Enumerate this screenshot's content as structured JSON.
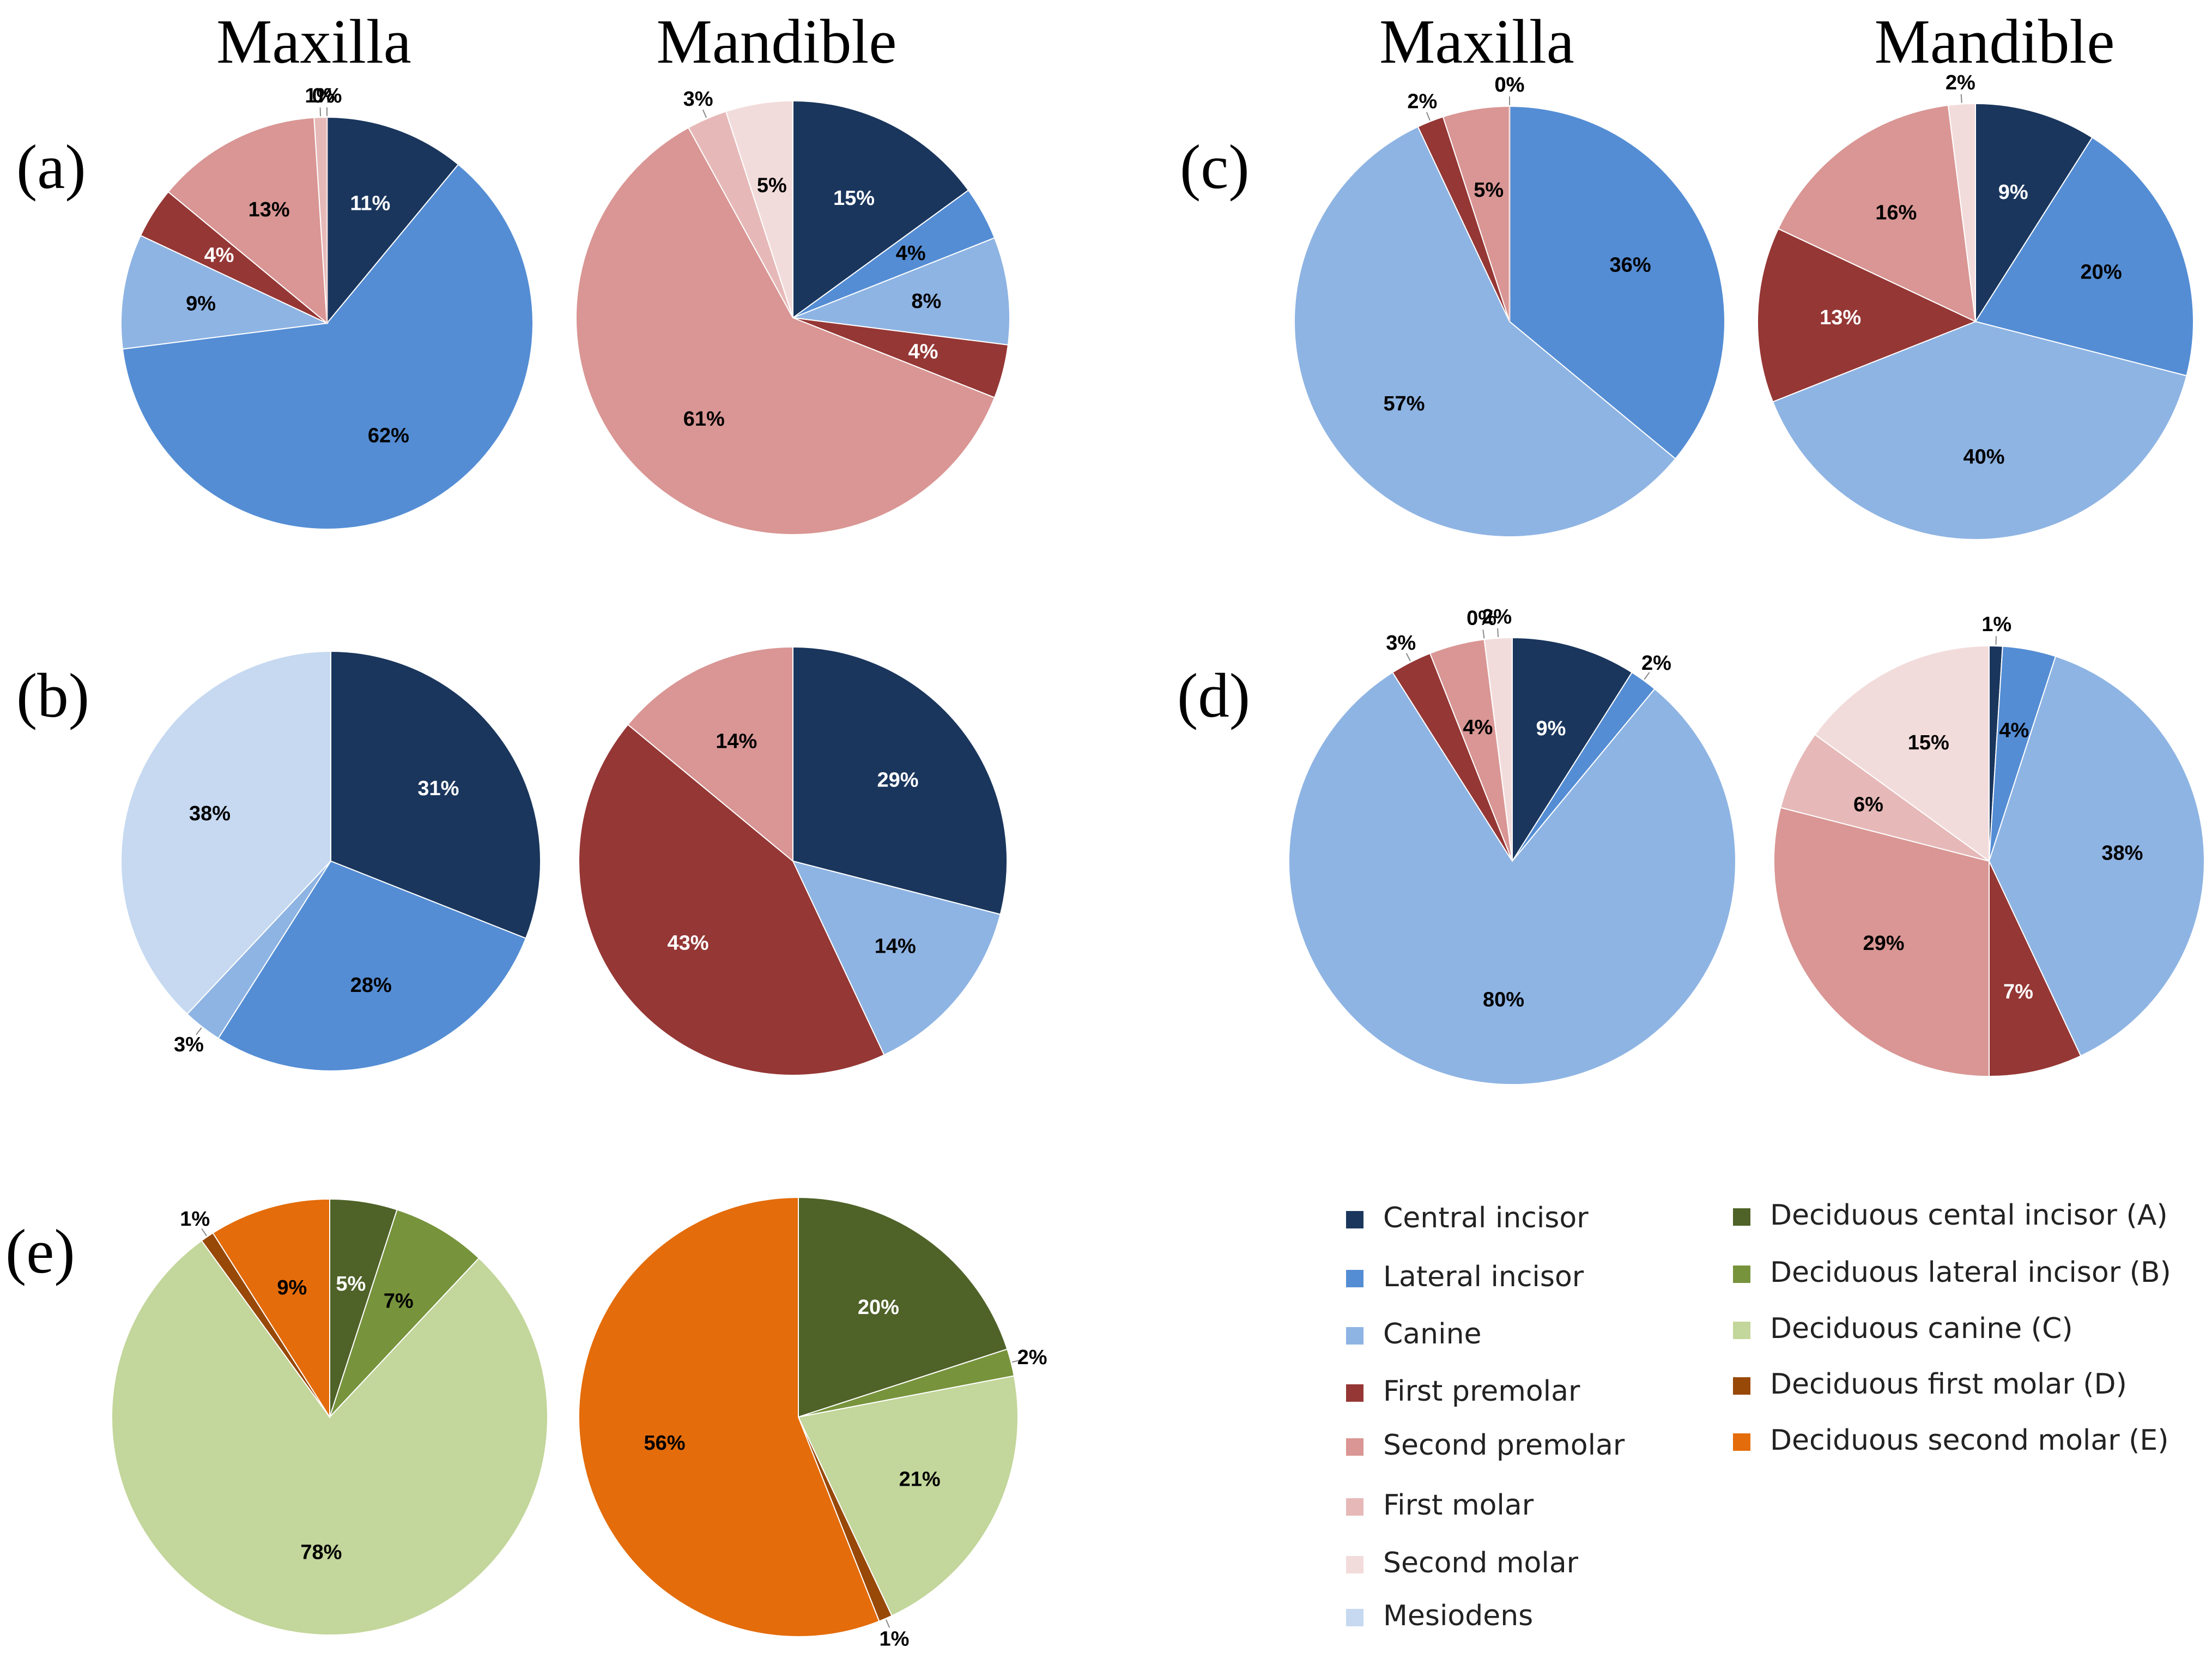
{
  "headers": {
    "maxilla": "Maxilla",
    "mandible": "Mandible"
  },
  "categories": [
    {
      "name": "Central incisor",
      "color": "#1a365d"
    },
    {
      "name": "Lateral incisor",
      "color": "#548dd4"
    },
    {
      "name": "Canine",
      "color": "#8eb4e3"
    },
    {
      "name": "First premolar",
      "color": "#953735"
    },
    {
      "name": "Second premolar",
      "color": "#d99694"
    },
    {
      "name": "First molar",
      "color": "#e6b9b8"
    },
    {
      "name": "Second molar",
      "color": "#f2dcdb"
    },
    {
      "name": "Mesiodens",
      "color": "#c6d9f1"
    },
    {
      "name": "Deciduous cental incisor (A)",
      "color": "#4f6228"
    },
    {
      "name": "Deciduous lateral incisor (B)",
      "color": "#77933c"
    },
    {
      "name": "Deciduous canine (C)",
      "color": "#c3d69b"
    },
    {
      "name": "Deciduous first molar (D)",
      "color": "#984807"
    },
    {
      "name": "Deciduous second molar (E)",
      "color": "#e46c0a"
    }
  ],
  "chart_data": [
    {
      "type": "pie",
      "panel": "(a)",
      "jaw": "Maxilla",
      "title": "Maxilla",
      "labels": [
        "Central incisor",
        "Lateral incisor",
        "Canine",
        "First premolar",
        "Second premolar",
        "First molar",
        "Second molar"
      ],
      "values": [
        11,
        62,
        9,
        4,
        13,
        1,
        0
      ]
    },
    {
      "type": "pie",
      "panel": "(a)",
      "jaw": "Mandible",
      "title": "Mandible",
      "labels": [
        "Central incisor",
        "Lateral incisor",
        "Canine",
        "First premolar",
        "Second premolar",
        "First molar",
        "Second molar"
      ],
      "values": [
        15,
        4,
        8,
        4,
        61,
        3,
        5
      ]
    },
    {
      "type": "pie",
      "panel": "(b)",
      "jaw": "Maxilla",
      "labels": [
        "Central incisor",
        "Lateral incisor",
        "Canine",
        "Mesiodens"
      ],
      "values": [
        31,
        28,
        3,
        38
      ]
    },
    {
      "type": "pie",
      "panel": "(b)",
      "jaw": "Mandible",
      "labels": [
        "Central incisor",
        "Canine",
        "First premolar",
        "Second premolar"
      ],
      "values": [
        29,
        14,
        43,
        14
      ]
    },
    {
      "type": "pie",
      "panel": "(c)",
      "jaw": "Maxilla",
      "title": "Maxilla",
      "labels": [
        "Central incisor",
        "Lateral incisor",
        "Canine",
        "First premolar",
        "Second premolar",
        "First molar",
        "Second molar"
      ],
      "values": [
        0,
        36,
        57,
        2,
        5,
        0,
        0
      ]
    },
    {
      "type": "pie",
      "panel": "(c)",
      "jaw": "Mandible",
      "title": "Mandible",
      "labels": [
        "Central incisor",
        "Lateral incisor",
        "Canine",
        "First premolar",
        "Second premolar",
        "Second molar"
      ],
      "values": [
        9,
        20,
        40,
        13,
        16,
        2
      ]
    },
    {
      "type": "pie",
      "panel": "(d)",
      "jaw": "Maxilla",
      "labels": [
        "Central incisor",
        "Lateral incisor",
        "Canine",
        "First premolar",
        "Second premolar",
        "First molar",
        "Second molar"
      ],
      "values": [
        9,
        2,
        80,
        3,
        4,
        0,
        2
      ]
    },
    {
      "type": "pie",
      "panel": "(d)",
      "jaw": "Mandible",
      "labels": [
        "Central incisor",
        "Lateral incisor",
        "Canine",
        "First premolar",
        "Second premolar",
        "First molar",
        "Second molar"
      ],
      "values": [
        1,
        4,
        38,
        7,
        29,
        6,
        15
      ]
    },
    {
      "type": "pie",
      "panel": "(e)",
      "jaw": "Maxilla",
      "labels": [
        "Deciduous cental incisor (A)",
        "Deciduous lateral incisor (B)",
        "Deciduous canine (C)",
        "Deciduous first molar (D)",
        "Deciduous second molar (E)"
      ],
      "values": [
        5,
        7,
        78,
        1,
        9
      ]
    },
    {
      "type": "pie",
      "panel": "(e)",
      "jaw": "Mandible",
      "labels": [
        "Deciduous cental incisor (A)",
        "Deciduous lateral incisor (B)",
        "Deciduous canine (C)",
        "Deciduous first molar (D)",
        "Deciduous second molar (E)"
      ],
      "values": [
        20,
        2,
        21,
        1,
        56
      ]
    }
  ]
}
